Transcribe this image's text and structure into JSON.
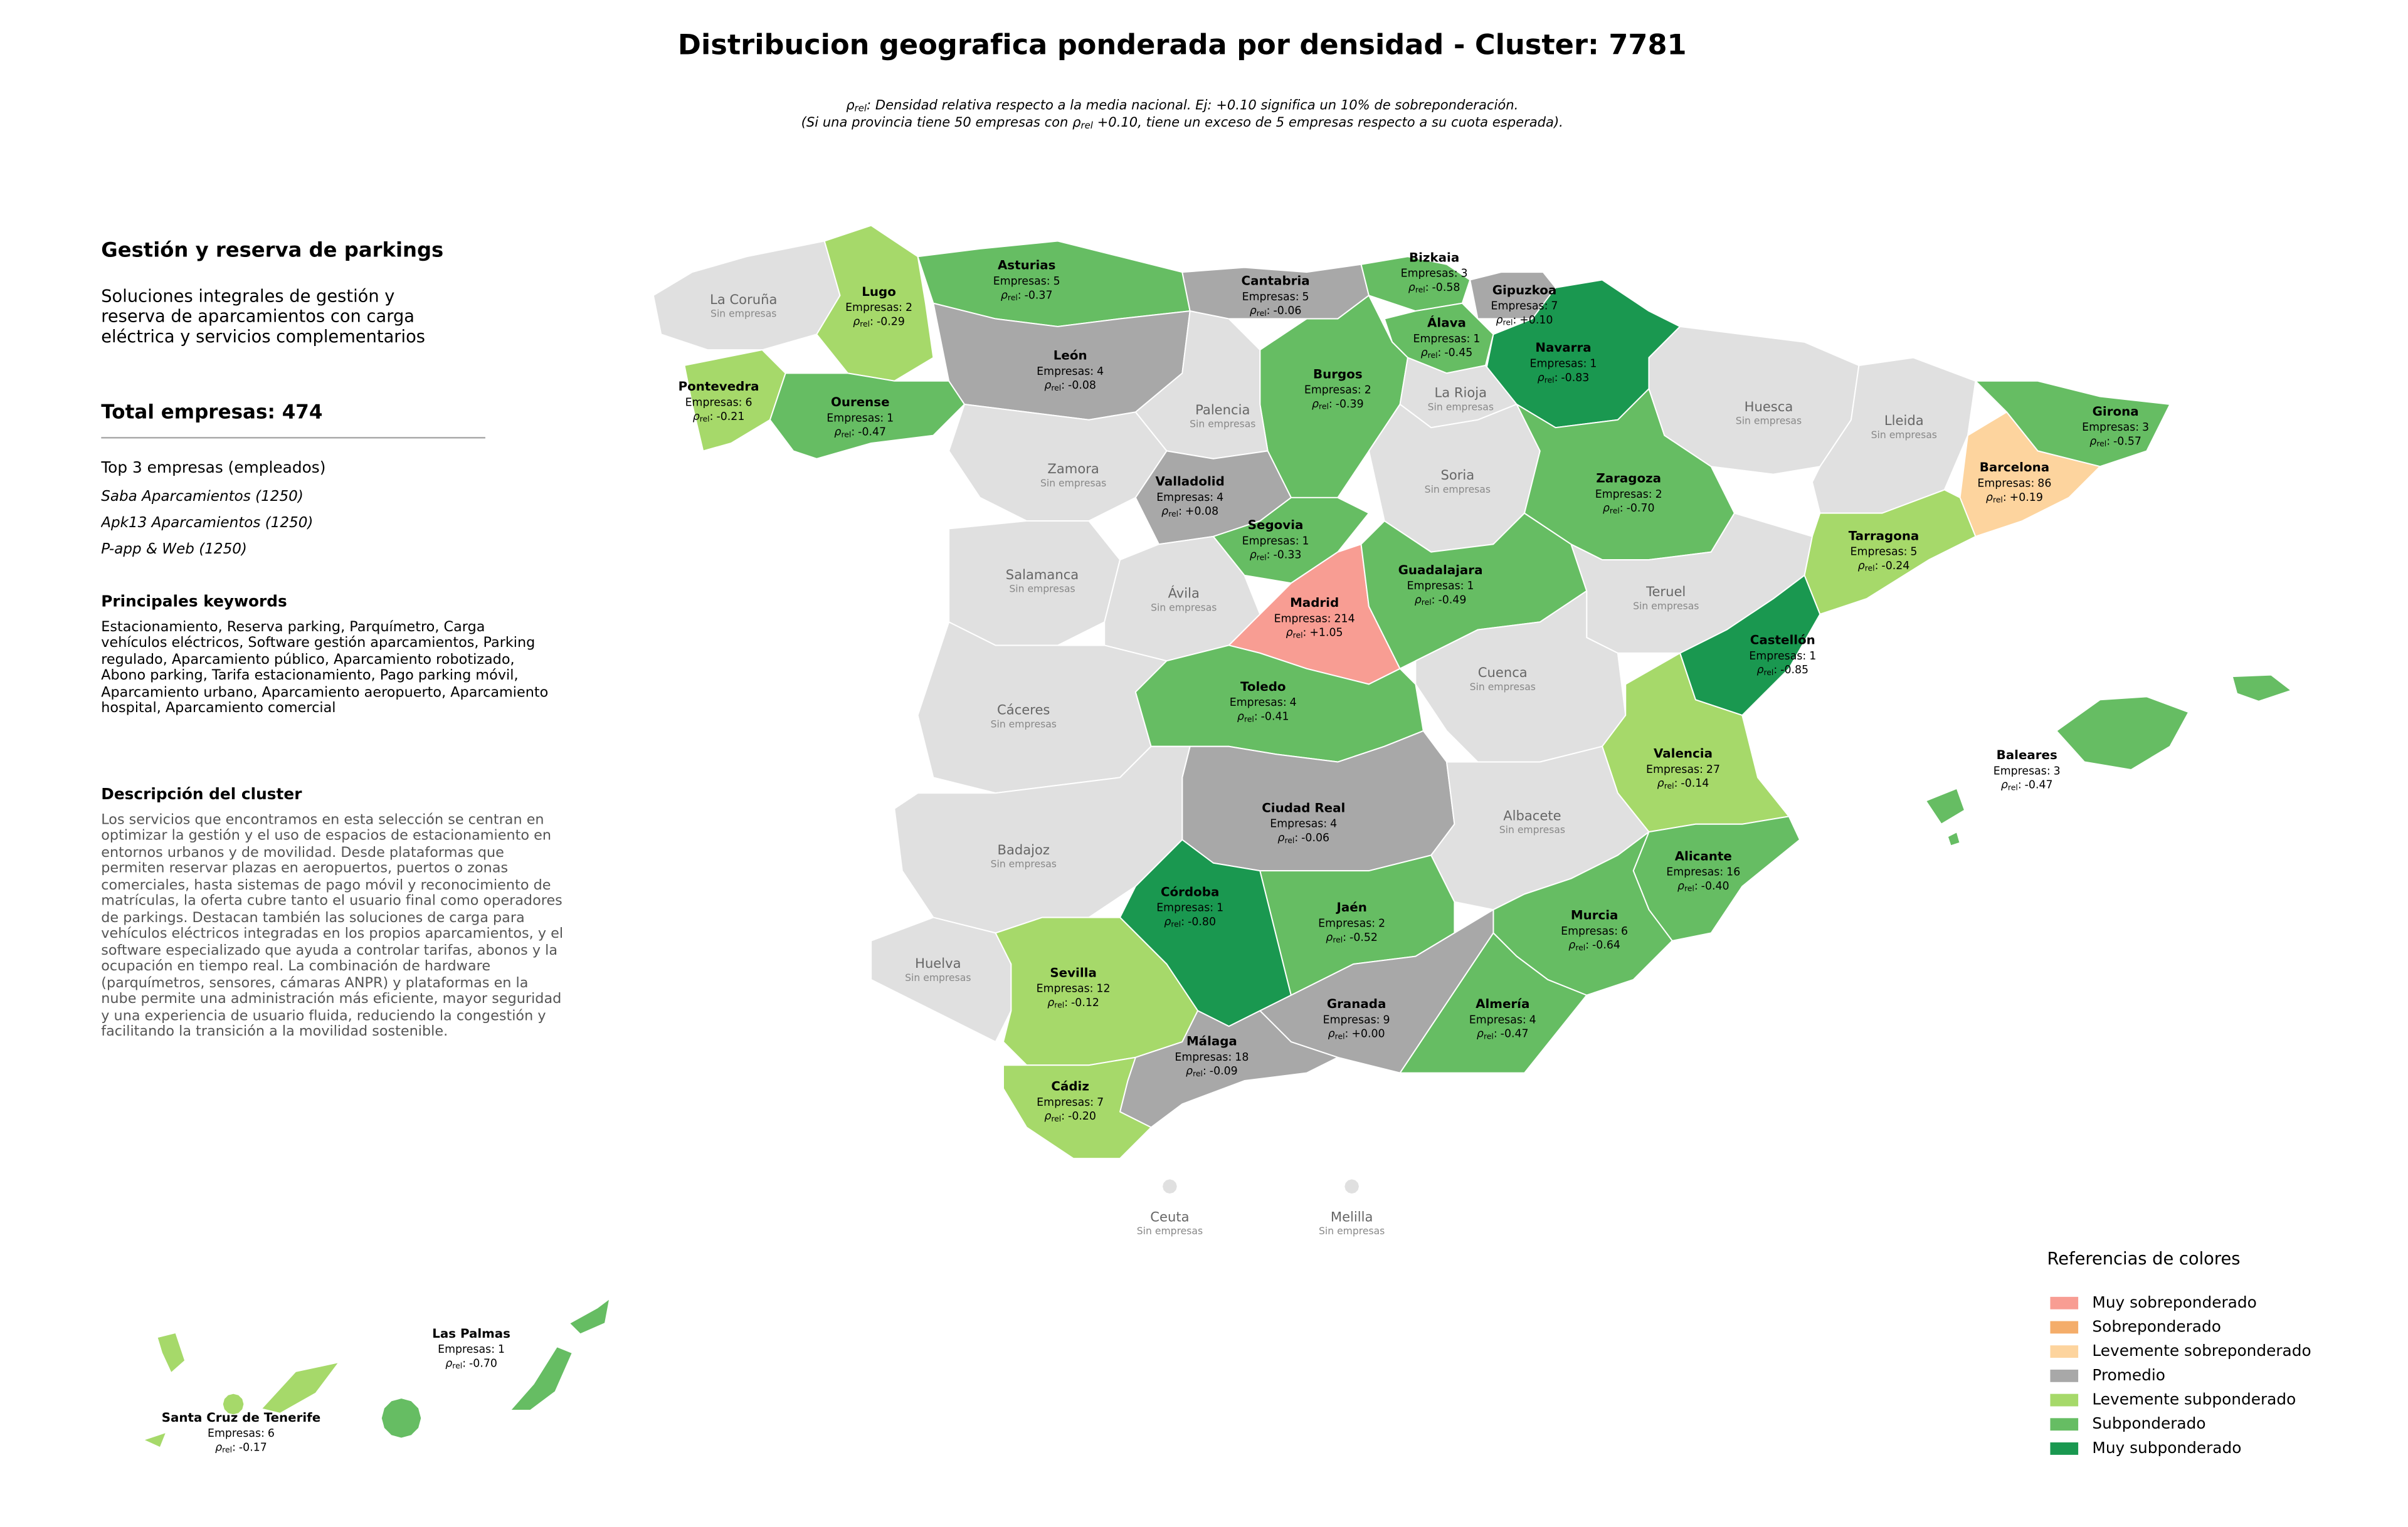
{
  "map": {
    "title": "Distribucion geografica ponderada por densidad - Cluster: 7781",
    "rho_label": {
      "symbol": "ρ",
      "sub": "rel",
      "sep": ":"
    },
    "subtitle": {
      "line1": ": Densidad relativa respecto a la media nacional. Ej: +0.10 significa un 10% de sobreponderación.",
      "line2_a": "(Si una provincia tiene 50 empresas con ",
      "line2_b": " +0.10, tiene un exceso de 5 empresas respecto a su cuota esperada)."
    },
    "labels": {
      "empresas": "Empresas:",
      "sin_empresas": "Sin empresas"
    },
    "provinces": [
      {
        "name": "La Coruña",
        "color": "#e0e0e0"
      },
      {
        "name": "Lugo",
        "empresas": 2,
        "rho": "-0.29",
        "color": "#a6d96a"
      },
      {
        "name": "Pontevedra",
        "empresas": 6,
        "rho": "-0.21",
        "color": "#a6d96a"
      },
      {
        "name": "Ourense",
        "empresas": 1,
        "rho": "-0.47",
        "color": "#66bd63"
      },
      {
        "name": "Asturias",
        "empresas": 5,
        "rho": "-0.37",
        "color": "#66bd63"
      },
      {
        "name": "Cantabria",
        "empresas": 5,
        "rho": "-0.06",
        "color": "#a8a8a8"
      },
      {
        "name": "Bizkaia",
        "empresas": 3,
        "rho": "-0.58",
        "color": "#66bd63"
      },
      {
        "name": "Gipuzkoa",
        "empresas": 7,
        "rho": "+0.10",
        "color": "#a8a8a8"
      },
      {
        "name": "Navarra",
        "empresas": 1,
        "rho": "-0.83",
        "color": "#1a9850"
      },
      {
        "name": "Álava",
        "empresas": 1,
        "rho": "-0.45",
        "color": "#66bd63"
      },
      {
        "name": "Burgos",
        "empresas": 2,
        "rho": "-0.39",
        "color": "#66bd63"
      },
      {
        "name": "León",
        "empresas": 4,
        "rho": "-0.08",
        "color": "#a8a8a8"
      },
      {
        "name": "Palencia",
        "color": "#e0e0e0"
      },
      {
        "name": "La Rioja",
        "color": "#e0e0e0"
      },
      {
        "name": "Zamora",
        "color": "#e0e0e0"
      },
      {
        "name": "Valladolid",
        "empresas": 4,
        "rho": "+0.08",
        "color": "#a8a8a8"
      },
      {
        "name": "Soria",
        "color": "#e0e0e0"
      },
      {
        "name": "Segovia",
        "empresas": 1,
        "rho": "-0.33",
        "color": "#66bd63"
      },
      {
        "name": "Salamanca",
        "color": "#e0e0e0"
      },
      {
        "name": "Ávila",
        "color": "#e0e0e0"
      },
      {
        "name": "Madrid",
        "empresas": 214,
        "rho": "+1.05",
        "color": "#f89d93"
      },
      {
        "name": "Guadalajara",
        "empresas": 1,
        "rho": "-0.49",
        "color": "#66bd63"
      },
      {
        "name": "Zaragoza",
        "empresas": 2,
        "rho": "-0.70",
        "color": "#66bd63"
      },
      {
        "name": "Huesca",
        "color": "#e0e0e0"
      },
      {
        "name": "Lleida",
        "color": "#e0e0e0"
      },
      {
        "name": "Girona",
        "empresas": 3,
        "rho": "-0.57",
        "color": "#66bd63"
      },
      {
        "name": "Barcelona",
        "empresas": 86,
        "rho": "+0.19",
        "color": "#fdd49e"
      },
      {
        "name": "Tarragona",
        "empresas": 5,
        "rho": "-0.24",
        "color": "#a6d96a"
      },
      {
        "name": "Teruel",
        "color": "#e0e0e0"
      },
      {
        "name": "Castellón",
        "empresas": 1,
        "rho": "-0.85",
        "color": "#1a9850"
      },
      {
        "name": "Cuenca",
        "color": "#e0e0e0"
      },
      {
        "name": "Valencia",
        "empresas": 27,
        "rho": "-0.14",
        "color": "#a6d96a"
      },
      {
        "name": "Cáceres",
        "color": "#e0e0e0"
      },
      {
        "name": "Toledo",
        "empresas": 4,
        "rho": "-0.41",
        "color": "#66bd63"
      },
      {
        "name": "Ciudad Real",
        "empresas": 4,
        "rho": "-0.06",
        "color": "#a8a8a8"
      },
      {
        "name": "Albacete",
        "color": "#e0e0e0"
      },
      {
        "name": "Alicante",
        "empresas": 16,
        "rho": "-0.40",
        "color": "#66bd63"
      },
      {
        "name": "Murcia",
        "empresas": 6,
        "rho": "-0.64",
        "color": "#66bd63"
      },
      {
        "name": "Badajoz",
        "color": "#e0e0e0"
      },
      {
        "name": "Huelva",
        "color": "#e0e0e0"
      },
      {
        "name": "Córdoba",
        "empresas": 1,
        "rho": "-0.80",
        "color": "#1a9850"
      },
      {
        "name": "Jaén",
        "empresas": 2,
        "rho": "-0.52",
        "color": "#66bd63"
      },
      {
        "name": "Sevilla",
        "empresas": 12,
        "rho": "-0.12",
        "color": "#a6d96a"
      },
      {
        "name": "Granada",
        "empresas": 9,
        "rho": "+0.00",
        "color": "#a8a8a8"
      },
      {
        "name": "Almería",
        "empresas": 4,
        "rho": "-0.47",
        "color": "#66bd63"
      },
      {
        "name": "Málaga",
        "empresas": 18,
        "rho": "-0.09",
        "color": "#a8a8a8"
      },
      {
        "name": "Cádiz",
        "empresas": 7,
        "rho": "-0.20",
        "color": "#a6d96a"
      },
      {
        "name": "Baleares",
        "empresas": 3,
        "rho": "-0.47",
        "color": "#66bd63"
      },
      {
        "name": "Ceuta",
        "color": "#e0e0e0"
      },
      {
        "name": "Melilla",
        "color": "#e0e0e0"
      },
      {
        "name": "Las Palmas",
        "empresas": 1,
        "rho": "-0.70",
        "color": "#66bd63"
      },
      {
        "name": "Santa Cruz de Tenerife",
        "empresas": 6,
        "rho": "-0.17",
        "color": "#a6d96a"
      }
    ],
    "legend": {
      "title": "Referencias de colores",
      "items": [
        {
          "name": "Muy sobreponderado",
          "color": "#f89d93"
        },
        {
          "name": "Sobreponderado",
          "color": "#f4ad6a"
        },
        {
          "name": "Levemente sobreponderado",
          "color": "#fdd49e"
        },
        {
          "name": "Promedio",
          "color": "#a8a8a8"
        },
        {
          "name": "Levemente subponderado",
          "color": "#a6d96a"
        },
        {
          "name": "Subponderado",
          "color": "#66bd63"
        },
        {
          "name": "Muy subponderado",
          "color": "#1a9850"
        }
      ]
    },
    "panel": {
      "heading": "Gestión y reserva de parkings",
      "description": "Soluciones integrales de gestión y reserva de aparcamientos con carga eléctrica y servicios complementarios",
      "total_label": "Total empresas:",
      "total": 474,
      "top3_heading": "Top 3 empresas (empleados)",
      "top3": [
        "Saba Aparcamientos (1250)",
        "Apk13 Aparcamientos (1250)",
        "P-app & Web (1250)"
      ],
      "keywords_heading": "Principales keywords",
      "keywords": "Estacionamiento, Reserva parking, Parquímetro, Carga vehículos eléctricos, Software gestión aparcamientos, Parking regulado, Aparcamiento público, Aparcamiento robotizado, Abono parking, Tarifa estacionamiento, Pago parking móvil, Aparcamiento urbano, Aparcamiento aeropuerto, Aparcamiento hospital, Aparcamiento comercial",
      "cluster_heading": "Descripción del cluster",
      "cluster_text": "Los servicios que encontramos en esta selección se centran en optimizar la gestión y el uso de espacios de estacionamiento en entornos urbanos y de movilidad. Desde plataformas que permiten reservar plazas en aeropuertos, puertos o zonas comerciales, hasta sistemas de pago móvil y reconocimiento de matrículas, la oferta cubre tanto el usuario final como operadores de parkings. Destacan también las soluciones de carga para vehículos eléctricos integradas en los propios aparcamientos, y el software especializado que ayuda a controlar tarifas, abonos y la ocupación en tiempo real. La combinación de hardware (parquímetros, sensores, cámaras ANPR) y plataformas en la nube permite una administración más eficiente, mayor seguridad y una experiencia de usuario fluida, reduciendo la congestión y facilitando la transición a la movilidad sostenible."
    }
  }
}
